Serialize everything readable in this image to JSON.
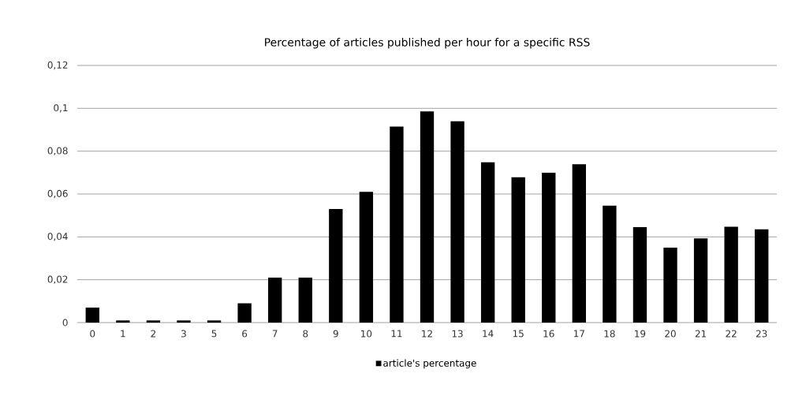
{
  "chart_data": {
    "type": "bar",
    "title": "Percentage of articles published per hour for a specific RSS",
    "categories": [
      "0",
      "1",
      "2",
      "3",
      "5",
      "6",
      "7",
      "8",
      "9",
      "10",
      "11",
      "12",
      "13",
      "14",
      "15",
      "16",
      "17",
      "18",
      "19",
      "20",
      "21",
      "22",
      "23"
    ],
    "series": [
      {
        "name": "article's percentage",
        "color": "#000000",
        "values": [
          0.007,
          0.001,
          0.001,
          0.001,
          0.001,
          0.009,
          0.021,
          0.021,
          0.053,
          0.061,
          0.0915,
          0.0986,
          0.094,
          0.0748,
          0.0678,
          0.0699,
          0.0739,
          0.0546,
          0.0445,
          0.035,
          0.0393,
          0.0447,
          0.0435
        ]
      }
    ],
    "ylim": [
      0,
      0.12
    ],
    "yticks": [
      0,
      {
        "value": 0.02,
        "label": "0,02"
      },
      {
        "value": 0.04,
        "label": "0,04"
      },
      {
        "value": 0.06,
        "label": "0,06"
      },
      {
        "value": 0.08,
        "label": "0,08"
      },
      {
        "value": 0.1,
        "label": "0,1"
      },
      {
        "value": 0.12,
        "label": "0,12"
      }
    ],
    "grid": "y",
    "legend": "bottom"
  }
}
